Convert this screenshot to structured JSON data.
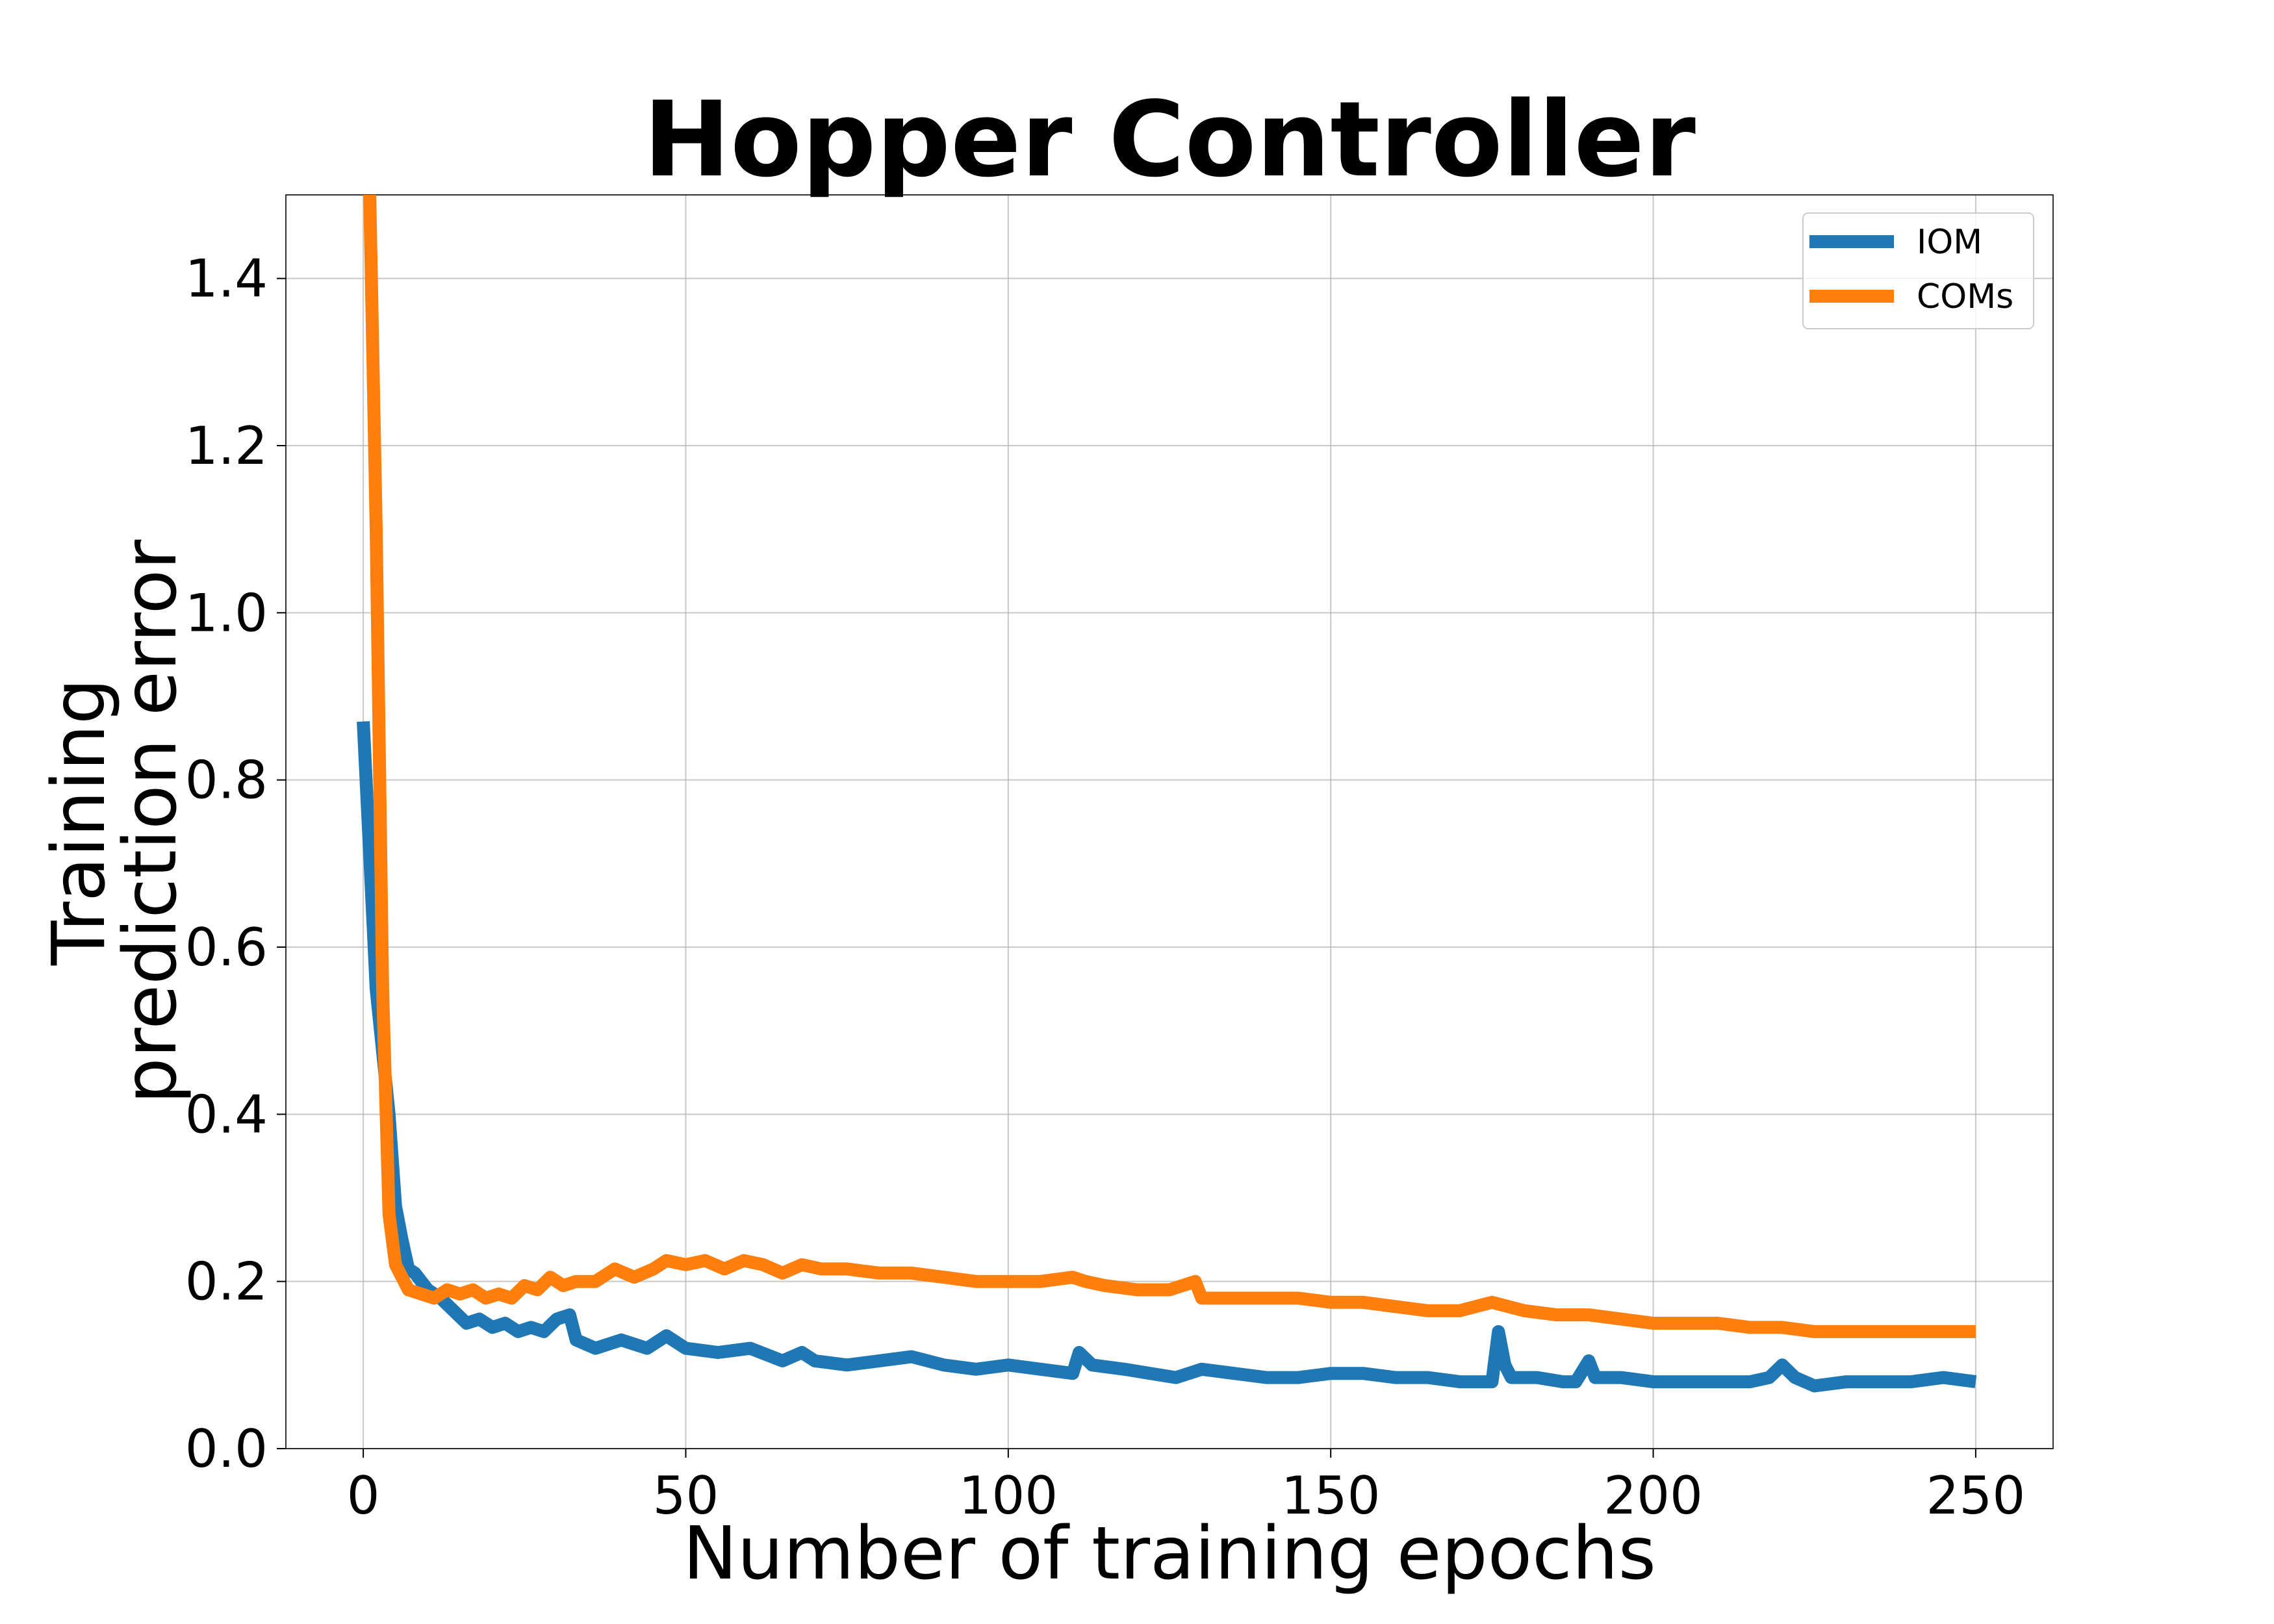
{
  "chart_data": {
    "type": "line",
    "title": "Hopper Controller",
    "xlabel": "Number of training epochs",
    "ylabel": [
      "Training",
      "prediction error"
    ],
    "xlim": [
      -12,
      262
    ],
    "ylim": [
      0.0,
      1.5
    ],
    "xticks": [
      0,
      50,
      100,
      150,
      200,
      250
    ],
    "xtick_labels": [
      "0",
      "50",
      "100",
      "150",
      "200",
      "250"
    ],
    "yticks": [
      0.0,
      0.2,
      0.4,
      0.6,
      0.8,
      1.0,
      1.2,
      1.4
    ],
    "ytick_labels": [
      "0.0",
      "0.2",
      "0.4",
      "0.6",
      "0.8",
      "1.0",
      "1.2",
      "1.4"
    ],
    "grid": true,
    "legend_position": "top-right",
    "series": [
      {
        "name": "IOM",
        "color": "#1f77b4",
        "points": [
          [
            0,
            0.87
          ],
          [
            2,
            0.55
          ],
          [
            4,
            0.4
          ],
          [
            5,
            0.29
          ],
          [
            6,
            0.25
          ],
          [
            7,
            0.215
          ],
          [
            8,
            0.21
          ],
          [
            10,
            0.19
          ],
          [
            12,
            0.18
          ],
          [
            14,
            0.165
          ],
          [
            16,
            0.15
          ],
          [
            18,
            0.155
          ],
          [
            20,
            0.145
          ],
          [
            22,
            0.15
          ],
          [
            24,
            0.14
          ],
          [
            26,
            0.145
          ],
          [
            28,
            0.14
          ],
          [
            30,
            0.155
          ],
          [
            32,
            0.16
          ],
          [
            33,
            0.13
          ],
          [
            36,
            0.12
          ],
          [
            40,
            0.13
          ],
          [
            44,
            0.12
          ],
          [
            47,
            0.135
          ],
          [
            50,
            0.12
          ],
          [
            55,
            0.115
          ],
          [
            60,
            0.12
          ],
          [
            65,
            0.105
          ],
          [
            68,
            0.115
          ],
          [
            70,
            0.105
          ],
          [
            75,
            0.1
          ],
          [
            80,
            0.105
          ],
          [
            85,
            0.11
          ],
          [
            90,
            0.1
          ],
          [
            95,
            0.095
          ],
          [
            100,
            0.1
          ],
          [
            105,
            0.095
          ],
          [
            110,
            0.09
          ],
          [
            111,
            0.115
          ],
          [
            113,
            0.1
          ],
          [
            118,
            0.095
          ],
          [
            122,
            0.09
          ],
          [
            126,
            0.085
          ],
          [
            130,
            0.095
          ],
          [
            135,
            0.09
          ],
          [
            140,
            0.085
          ],
          [
            145,
            0.085
          ],
          [
            150,
            0.09
          ],
          [
            155,
            0.09
          ],
          [
            160,
            0.085
          ],
          [
            165,
            0.085
          ],
          [
            170,
            0.08
          ],
          [
            174,
            0.08
          ],
          [
            175,
            0.08
          ],
          [
            176,
            0.14
          ],
          [
            177,
            0.1
          ],
          [
            178,
            0.085
          ],
          [
            182,
            0.085
          ],
          [
            186,
            0.08
          ],
          [
            188,
            0.08
          ],
          [
            190,
            0.105
          ],
          [
            191,
            0.085
          ],
          [
            195,
            0.085
          ],
          [
            200,
            0.08
          ],
          [
            205,
            0.08
          ],
          [
            210,
            0.08
          ],
          [
            215,
            0.08
          ],
          [
            218,
            0.085
          ],
          [
            220,
            0.1
          ],
          [
            222,
            0.085
          ],
          [
            225,
            0.075
          ],
          [
            230,
            0.08
          ],
          [
            235,
            0.08
          ],
          [
            240,
            0.08
          ],
          [
            245,
            0.085
          ],
          [
            250,
            0.08
          ]
        ]
      },
      {
        "name": "COMs",
        "color": "#ff7f0e",
        "points": [
          [
            0,
            1.52
          ],
          [
            1,
            1.5
          ],
          [
            2,
            1.1
          ],
          [
            3,
            0.55
          ],
          [
            4,
            0.28
          ],
          [
            5,
            0.22
          ],
          [
            7,
            0.19
          ],
          [
            9,
            0.185
          ],
          [
            11,
            0.18
          ],
          [
            13,
            0.19
          ],
          [
            15,
            0.185
          ],
          [
            17,
            0.19
          ],
          [
            19,
            0.18
          ],
          [
            21,
            0.185
          ],
          [
            23,
            0.18
          ],
          [
            25,
            0.195
          ],
          [
            27,
            0.19
          ],
          [
            29,
            0.205
          ],
          [
            31,
            0.195
          ],
          [
            33,
            0.2
          ],
          [
            36,
            0.2
          ],
          [
            39,
            0.215
          ],
          [
            42,
            0.205
          ],
          [
            45,
            0.215
          ],
          [
            47,
            0.225
          ],
          [
            50,
            0.22
          ],
          [
            53,
            0.225
          ],
          [
            56,
            0.215
          ],
          [
            59,
            0.225
          ],
          [
            62,
            0.22
          ],
          [
            65,
            0.21
          ],
          [
            68,
            0.22
          ],
          [
            71,
            0.215
          ],
          [
            75,
            0.215
          ],
          [
            80,
            0.21
          ],
          [
            85,
            0.21
          ],
          [
            90,
            0.205
          ],
          [
            95,
            0.2
          ],
          [
            100,
            0.2
          ],
          [
            105,
            0.2
          ],
          [
            110,
            0.205
          ],
          [
            112,
            0.2
          ],
          [
            115,
            0.195
          ],
          [
            120,
            0.19
          ],
          [
            125,
            0.19
          ],
          [
            129,
            0.2
          ],
          [
            130,
            0.18
          ],
          [
            135,
            0.18
          ],
          [
            140,
            0.18
          ],
          [
            145,
            0.18
          ],
          [
            150,
            0.175
          ],
          [
            155,
            0.175
          ],
          [
            160,
            0.17
          ],
          [
            165,
            0.165
          ],
          [
            170,
            0.165
          ],
          [
            175,
            0.175
          ],
          [
            180,
            0.165
          ],
          [
            185,
            0.16
          ],
          [
            190,
            0.16
          ],
          [
            195,
            0.155
          ],
          [
            200,
            0.15
          ],
          [
            205,
            0.15
          ],
          [
            210,
            0.15
          ],
          [
            215,
            0.145
          ],
          [
            220,
            0.145
          ],
          [
            225,
            0.14
          ],
          [
            230,
            0.14
          ],
          [
            235,
            0.14
          ],
          [
            240,
            0.14
          ],
          [
            245,
            0.14
          ],
          [
            250,
            0.14
          ]
        ]
      }
    ]
  }
}
